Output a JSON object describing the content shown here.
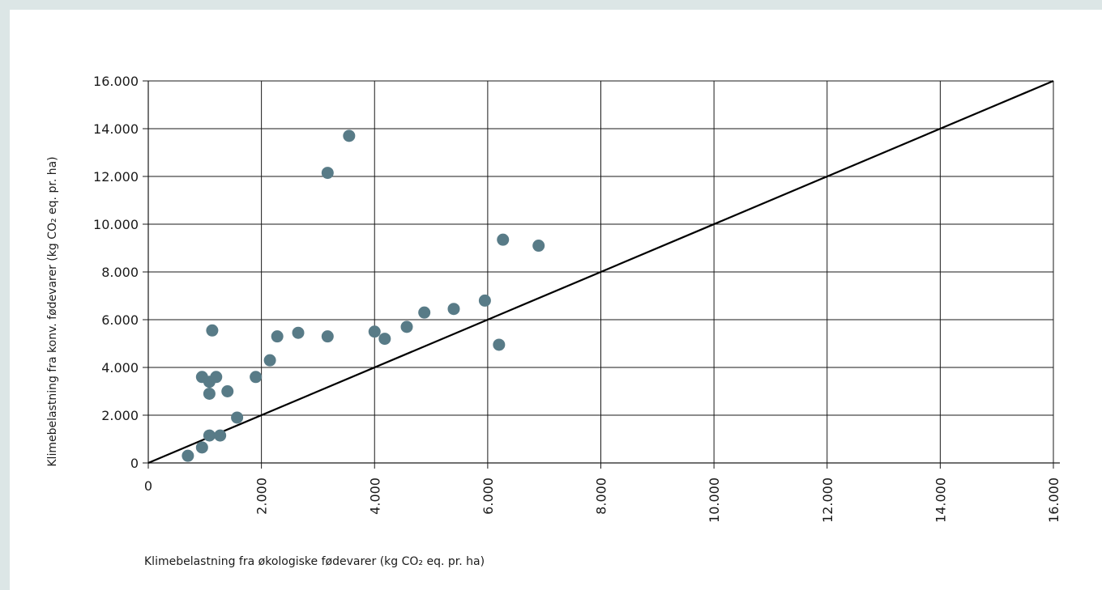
{
  "chart_data": {
    "type": "scatter",
    "title": "",
    "xlabel": "Klimebelastning fra økologiske fødevarer (kg CO₂ eq. pr. ha)",
    "ylabel": "Klimebelastning fra konv. fødevarer (kg CO₂ eq. pr. ha)",
    "xlim": [
      0,
      16000
    ],
    "ylim": [
      0,
      16000
    ],
    "x_ticks": [
      0,
      2000,
      4000,
      6000,
      8000,
      10000,
      12000,
      14000,
      16000
    ],
    "x_tick_labels": [
      "0",
      "2.000",
      "4.000",
      "6.000",
      "8.000",
      "10.000",
      "12.000",
      "14.000",
      "16.000"
    ],
    "y_ticks": [
      0,
      2000,
      4000,
      6000,
      8000,
      10000,
      12000,
      14000,
      16000
    ],
    "y_tick_labels": [
      "0",
      "2.000",
      "4.000",
      "6.000",
      "8.000",
      "10.000",
      "12.000",
      "14.000",
      "16.000"
    ],
    "grid": true,
    "point_color": "#587b87",
    "reference_line": {
      "from": [
        0,
        0
      ],
      "to": [
        16000,
        16000
      ],
      "color": "#000000"
    },
    "points": [
      {
        "x": 700,
        "y": 300
      },
      {
        "x": 950,
        "y": 650
      },
      {
        "x": 1080,
        "y": 1150
      },
      {
        "x": 1270,
        "y": 1150
      },
      {
        "x": 1570,
        "y": 1900
      },
      {
        "x": 1080,
        "y": 2900
      },
      {
        "x": 1400,
        "y": 3000
      },
      {
        "x": 950,
        "y": 3600
      },
      {
        "x": 1080,
        "y": 3400
      },
      {
        "x": 1200,
        "y": 3600
      },
      {
        "x": 1130,
        "y": 5550
      },
      {
        "x": 1900,
        "y": 3600
      },
      {
        "x": 2150,
        "y": 4300
      },
      {
        "x": 2280,
        "y": 5300
      },
      {
        "x": 2650,
        "y": 5450
      },
      {
        "x": 3170,
        "y": 5300
      },
      {
        "x": 3170,
        "y": 12150
      },
      {
        "x": 3550,
        "y": 13700
      },
      {
        "x": 4000,
        "y": 5500
      },
      {
        "x": 4180,
        "y": 5200
      },
      {
        "x": 4570,
        "y": 5700
      },
      {
        "x": 4880,
        "y": 6300
      },
      {
        "x": 5400,
        "y": 6450
      },
      {
        "x": 5950,
        "y": 6800
      },
      {
        "x": 6200,
        "y": 4950
      },
      {
        "x": 6270,
        "y": 9350
      },
      {
        "x": 6900,
        "y": 9100
      }
    ]
  }
}
